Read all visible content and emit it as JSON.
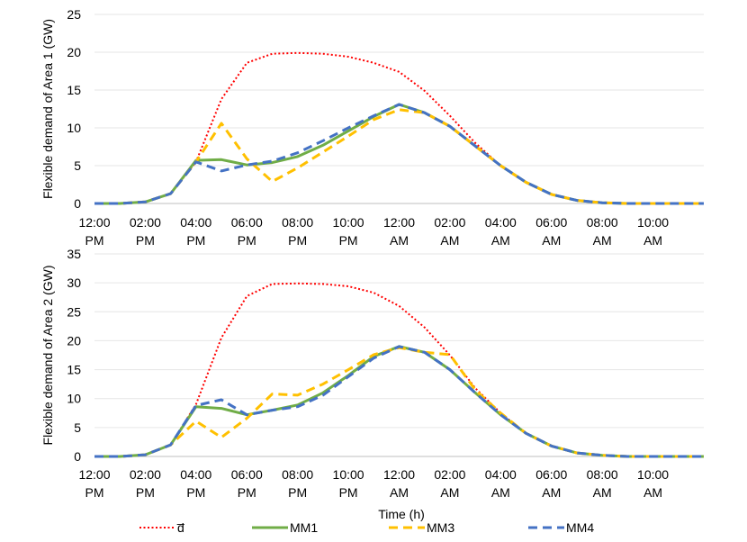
{
  "xlabel": "Time (h)",
  "colors": {
    "d_bar": "#ff0000",
    "MM1": "#70ad47",
    "MM3": "#ffc000",
    "MM4": "#4472c4"
  },
  "legend": [
    "d̅",
    "MM1",
    "MM3",
    "MM4"
  ],
  "x_tick_labels": [
    [
      "12:00",
      "PM"
    ],
    [
      "02:00",
      "PM"
    ],
    [
      "04:00",
      "PM"
    ],
    [
      "06:00",
      "PM"
    ],
    [
      "08:00",
      "PM"
    ],
    [
      "10:00",
      "PM"
    ],
    [
      "12:00",
      "AM"
    ],
    [
      "02:00",
      "AM"
    ],
    [
      "04:00",
      "AM"
    ],
    [
      "06:00",
      "AM"
    ],
    [
      "08:00",
      "AM"
    ],
    [
      "10:00",
      "AM"
    ]
  ],
  "chart_data": [
    {
      "type": "line",
      "ylabel": "Flexible demand of Area 1 (GW)",
      "ylim": [
        0,
        25
      ],
      "yticks": [
        0,
        5,
        10,
        15,
        20,
        25
      ],
      "xlim": [
        0,
        24
      ],
      "x": [
        0,
        1,
        2,
        3,
        4,
        5,
        6,
        7,
        8,
        9,
        10,
        11,
        12,
        13,
        14,
        15,
        16,
        17,
        18,
        19,
        20,
        21,
        22,
        23,
        24
      ],
      "grid": true,
      "legend_position": "bottom",
      "series": [
        {
          "name": "d̅",
          "key": "d_bar",
          "style": "dotted",
          "values": [
            0,
            0,
            0.2,
            1.3,
            5.5,
            13.8,
            18.6,
            19.8,
            19.9,
            19.8,
            19.4,
            18.6,
            17.4,
            14.9,
            11.6,
            8,
            5,
            2.8,
            1.2,
            0.4,
            0.1,
            0,
            0,
            0,
            0
          ]
        },
        {
          "name": "MM1",
          "key": "MM1",
          "style": "solid",
          "values": [
            0,
            0,
            0.2,
            1.3,
            5.7,
            5.8,
            5.1,
            5.4,
            6.2,
            7.7,
            9.6,
            11.5,
            13.1,
            12,
            10.2,
            7.6,
            5,
            2.8,
            1.2,
            0.4,
            0.1,
            0,
            0,
            0,
            0
          ]
        },
        {
          "name": "MM3",
          "key": "MM3",
          "style": "dashed",
          "values": [
            0,
            0,
            0.2,
            1.3,
            5.5,
            10.6,
            5.9,
            2.9,
            4.7,
            6.8,
            8.9,
            11.1,
            12.4,
            12,
            10.2,
            7.6,
            5,
            2.8,
            1.2,
            0.4,
            0.1,
            0,
            0,
            0,
            0
          ]
        },
        {
          "name": "MM4",
          "key": "MM4",
          "style": "dashed",
          "values": [
            0,
            0,
            0.2,
            1.3,
            5.5,
            4.3,
            5.1,
            5.6,
            6.7,
            8.3,
            10,
            11.6,
            13.1,
            12,
            10.2,
            7.6,
            5,
            2.8,
            1.2,
            0.4,
            0.1,
            0,
            0,
            0,
            0
          ]
        }
      ]
    },
    {
      "type": "line",
      "ylabel": "Flexible demand of Area 2 (GW)",
      "ylim": [
        0,
        35
      ],
      "yticks": [
        0,
        5,
        10,
        15,
        20,
        25,
        30,
        35
      ],
      "xlim": [
        0,
        24
      ],
      "x": [
        0,
        1,
        2,
        3,
        4,
        5,
        6,
        7,
        8,
        9,
        10,
        11,
        12,
        13,
        14,
        15,
        16,
        17,
        18,
        19,
        20,
        21,
        22,
        23,
        24
      ],
      "grid": true,
      "legend_position": "bottom",
      "series": [
        {
          "name": "d̅",
          "key": "d_bar",
          "style": "dotted",
          "values": [
            0,
            0,
            0.3,
            2,
            9,
            20.5,
            27.7,
            29.8,
            29.9,
            29.8,
            29.4,
            28.3,
            26,
            22.3,
            17.5,
            11.8,
            7.5,
            4,
            1.8,
            0.6,
            0.2,
            0,
            0,
            0,
            0
          ]
        },
        {
          "name": "MM1",
          "key": "MM1",
          "style": "solid",
          "values": [
            0,
            0,
            0.3,
            2,
            8.6,
            8.3,
            7.2,
            8,
            8.9,
            11,
            14,
            17.3,
            19,
            18,
            15,
            11,
            7.2,
            4,
            1.8,
            0.6,
            0.2,
            0,
            0,
            0,
            0
          ]
        },
        {
          "name": "MM3",
          "key": "MM3",
          "style": "dashed",
          "values": [
            0,
            0,
            0.3,
            2,
            6.1,
            3.3,
            6.6,
            10.8,
            10.6,
            12.5,
            15,
            17.6,
            18.8,
            18,
            17.6,
            11.5,
            7.5,
            4,
            1.8,
            0.6,
            0.2,
            0,
            0,
            0,
            0
          ]
        },
        {
          "name": "MM4",
          "key": "MM4",
          "style": "dashed",
          "values": [
            0,
            0,
            0.3,
            2,
            8.8,
            9.8,
            7.2,
            8,
            8.6,
            10.6,
            13.8,
            17,
            19,
            18,
            15,
            11,
            7.2,
            4,
            1.8,
            0.6,
            0.2,
            0,
            0,
            0,
            0
          ]
        }
      ]
    }
  ]
}
